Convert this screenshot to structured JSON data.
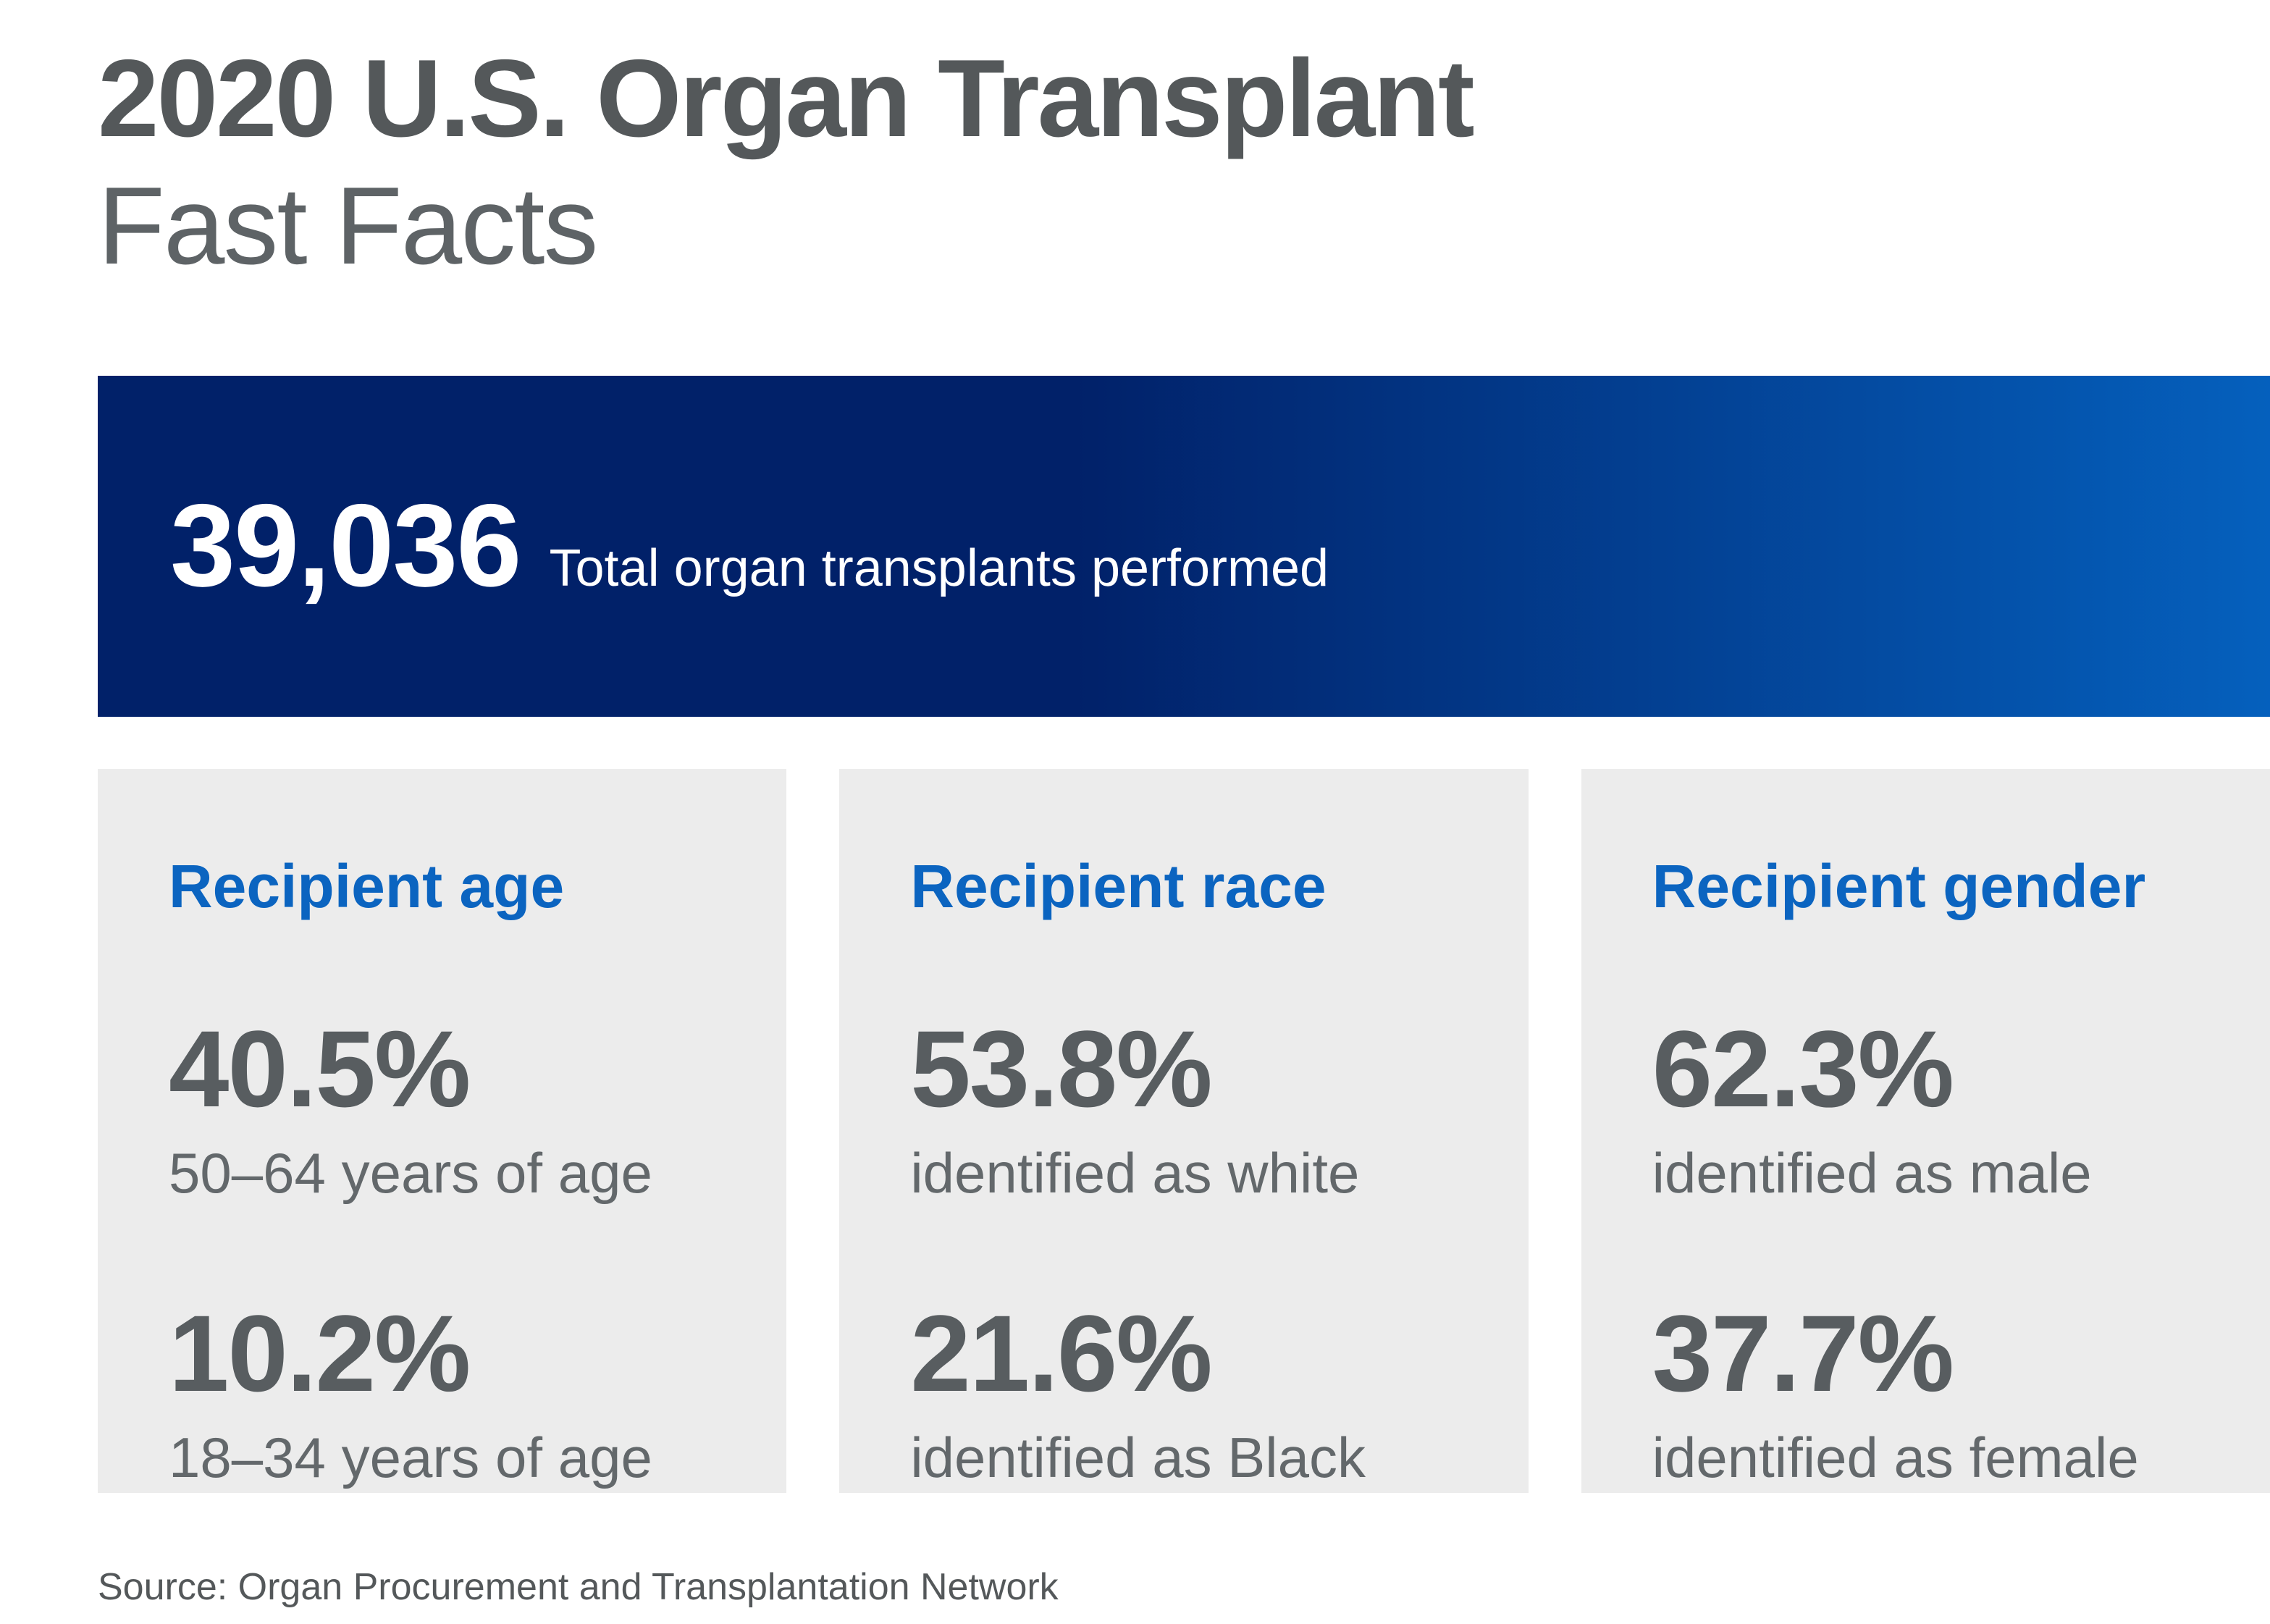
{
  "page": {
    "title_line1": "2020 U.S. Organ Transplant",
    "title_line2": "Fast Facts",
    "source": "Source: Organ Procurement and Transplantation Network"
  },
  "banner": {
    "value": "39,036",
    "label": "Total organ transplants performed"
  },
  "cards": [
    {
      "heading": "Recipient age",
      "stats": [
        {
          "value": "40.5%",
          "label": "50–64 years of age"
        },
        {
          "value": "10.2%",
          "label": "18–34 years of age"
        }
      ]
    },
    {
      "heading": "Recipient race",
      "stats": [
        {
          "value": "53.8%",
          "label": "identified as white"
        },
        {
          "value": "21.6%",
          "label": "identified as Black"
        }
      ]
    },
    {
      "heading": "Recipient gender",
      "stats": [
        {
          "value": "62.3%",
          "label": "identified as male"
        },
        {
          "value": "37.7%",
          "label": "identified as female"
        }
      ]
    }
  ],
  "colors": {
    "title-gray": "#54585A",
    "subtitle-gray": "#5E6366",
    "navy": "#012169",
    "blue-bright": "#0560BD",
    "card-bg": "#ECECEC",
    "heading-blue": "#0B64C0",
    "value-gray": "#585D60",
    "label-gray": "#63686B",
    "source-gray": "#54585A"
  },
  "chart_data": {
    "type": "table",
    "title": "2020 U.S. Organ Transplant Fast Facts",
    "total_transplants": 39036,
    "total_label": "Total organ transplants performed",
    "groups": [
      {
        "name": "Recipient age",
        "rows": [
          {
            "label": "50–64 years of age",
            "value_pct": 40.5
          },
          {
            "label": "18–34 years of age",
            "value_pct": 10.2
          }
        ]
      },
      {
        "name": "Recipient race",
        "rows": [
          {
            "label": "identified as white",
            "value_pct": 53.8
          },
          {
            "label": "identified as Black",
            "value_pct": 21.6
          }
        ]
      },
      {
        "name": "Recipient gender",
        "rows": [
          {
            "label": "identified as male",
            "value_pct": 62.3
          },
          {
            "label": "identified as female",
            "value_pct": 37.7
          }
        ]
      }
    ],
    "source": "Organ Procurement and Transplantation Network"
  }
}
